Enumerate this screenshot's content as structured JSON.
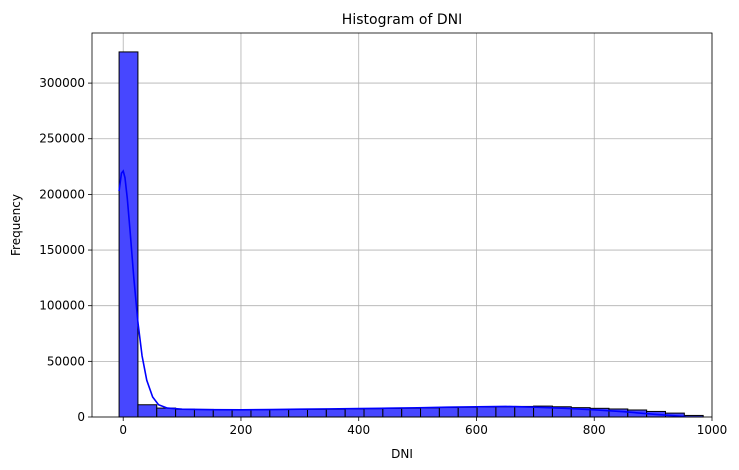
{
  "chart_data": {
    "type": "bar",
    "title": "Histogram of DNI",
    "xlabel": "DNI",
    "ylabel": "Frequency",
    "xlim": [
      -53,
      1000
    ],
    "ylim": [
      0,
      345000
    ],
    "xticks": [
      0,
      200,
      400,
      600,
      800,
      1000
    ],
    "yticks": [
      0,
      50000,
      100000,
      150000,
      200000,
      250000,
      300000
    ],
    "grid": true,
    "bar_color": "#4747ff",
    "edge_color": "#000000",
    "kde_color": "#0000ff",
    "bins": {
      "start": -7,
      "width": 32,
      "counts": [
        328000,
        11000,
        8000,
        7000,
        6800,
        6700,
        6600,
        6600,
        6700,
        6800,
        6900,
        7000,
        7200,
        7500,
        7700,
        7900,
        8200,
        8500,
        8800,
        9000,
        9200,
        9500,
        9800,
        9200,
        8400,
        7800,
        7200,
        6300,
        5000,
        3500,
        1400
      ]
    },
    "kde": {
      "x": [
        -7,
        -3,
        0,
        3,
        7,
        12,
        18,
        25,
        32,
        40,
        50,
        60,
        75,
        100,
        150,
        200,
        250,
        300,
        350,
        400,
        450,
        500,
        550,
        600,
        650,
        700,
        750,
        800,
        850,
        900,
        955
      ],
      "y": [
        203000,
        219000,
        221000,
        215000,
        196000,
        165000,
        125000,
        85000,
        55000,
        33000,
        18000,
        11000,
        8000,
        7000,
        6600,
        6500,
        6700,
        7000,
        7300,
        7600,
        7900,
        8300,
        8800,
        9200,
        9500,
        8800,
        7800,
        6500,
        4800,
        2500,
        400
      ]
    }
  }
}
